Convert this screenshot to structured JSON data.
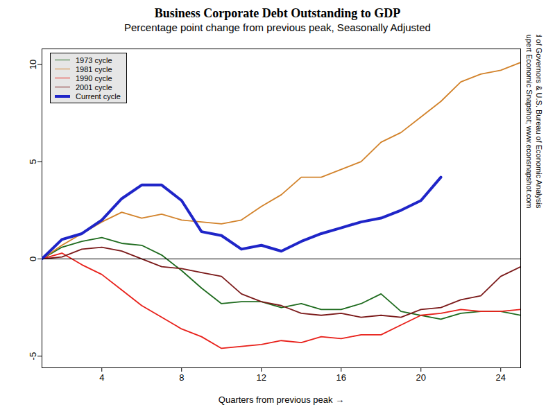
{
  "chart_data": {
    "type": "line",
    "title": "Business Corporate Debt Outstanding to GDP",
    "subtitle": "Percentage point change from previous peak, Seasonally Adjusted",
    "x_label": "Quarters from previous peak",
    "annotations": [
      "Cooley-Rupert Economic Snapshot; www.econsnapshot.com",
      "Source: Federal Reserve Board of Governors & U.S. Bureau of Economic Analysis"
    ],
    "x": [
      1,
      2,
      3,
      4,
      5,
      6,
      7,
      8,
      9,
      10,
      11,
      12,
      13,
      14,
      15,
      16,
      17,
      18,
      19,
      20,
      21,
      22,
      23,
      24,
      25
    ],
    "xlim": [
      1,
      25
    ],
    "xticks": [
      4,
      8,
      12,
      16,
      20,
      24
    ],
    "ylim": [
      -5.6,
      10.8
    ],
    "yticks": [
      -5,
      0,
      5,
      10
    ],
    "grid": false,
    "legend": "top-left",
    "series": [
      {
        "name": "1973 cycle",
        "color": "#1e6b1e",
        "line_style": "solid",
        "values": [
          0,
          0.6,
          0.9,
          1.1,
          0.8,
          0.7,
          0.2,
          -0.6,
          -1.5,
          -2.3,
          -2.2,
          -2.2,
          -2.5,
          -2.3,
          -2.6,
          -2.6,
          -2.3,
          -1.8,
          -2.7,
          -2.9,
          -3.1,
          -2.8,
          -2.7,
          -2.7,
          -2.9
        ]
      },
      {
        "name": "1981 cycle",
        "color": "#d2822a",
        "line_style": "solid",
        "values": [
          0,
          0.7,
          1.3,
          1.9,
          2.4,
          2.1,
          2.3,
          2.0,
          1.9,
          1.8,
          2.0,
          2.7,
          3.3,
          4.2,
          4.2,
          4.6,
          5.0,
          6.0,
          6.5,
          7.3,
          8.1,
          9.1,
          9.5,
          9.7,
          10.1
        ]
      },
      {
        "name": "1990 cycle",
        "color": "#e8201a",
        "line_style": "solid",
        "values": [
          0,
          0.3,
          -0.3,
          -0.8,
          -1.6,
          -2.4,
          -3.0,
          -3.6,
          -4.0,
          -4.6,
          -4.5,
          -4.4,
          -4.2,
          -4.3,
          -4.0,
          -4.1,
          -3.9,
          -3.9,
          -3.4,
          -2.9,
          -2.8,
          -2.6,
          -2.7,
          -2.7,
          -2.6
        ]
      },
      {
        "name": "2001 cycle",
        "color": "#7b1a1a",
        "line_style": "solid",
        "values": [
          0,
          0.1,
          0.5,
          0.6,
          0.4,
          0.0,
          -0.4,
          -0.5,
          -0.7,
          -0.9,
          -1.8,
          -2.2,
          -2.4,
          -2.8,
          -2.9,
          -2.8,
          -3.0,
          -2.9,
          -3.0,
          -2.6,
          -2.5,
          -2.1,
          -1.9,
          -0.9,
          -0.4
        ]
      },
      {
        "name": "Current cycle",
        "color": "#1f25c8",
        "line_style": "thick",
        "values": [
          0,
          1.0,
          1.3,
          2.0,
          3.1,
          3.8,
          3.8,
          3.0,
          1.4,
          1.2,
          0.5,
          0.7,
          0.4,
          0.9,
          1.3,
          1.6,
          1.9,
          2.1,
          2.5,
          3.0,
          4.2,
          null,
          null,
          null,
          null
        ]
      }
    ]
  }
}
